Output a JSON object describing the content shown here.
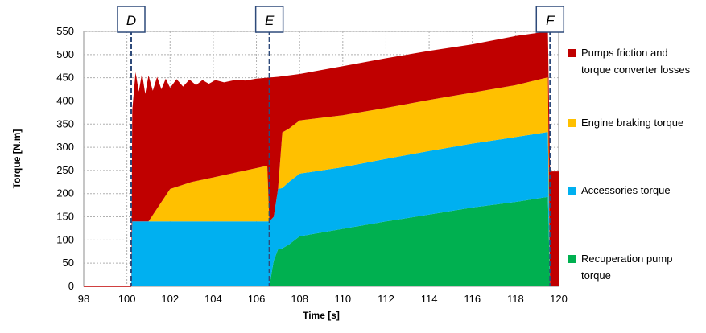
{
  "chart_data": {
    "type": "area",
    "xlabel": "Time [s]",
    "ylabel": "Torque [N.m]",
    "xlim": [
      98,
      120
    ],
    "ylim": [
      0,
      550
    ],
    "xticks": [
      98,
      100,
      102,
      104,
      106,
      108,
      110,
      112,
      114,
      116,
      118,
      120
    ],
    "yticks": [
      0,
      50,
      100,
      150,
      200,
      250,
      300,
      350,
      400,
      450,
      500,
      550
    ],
    "grid": true,
    "stacked": true,
    "legend_position": "right",
    "markers": [
      {
        "label": "D",
        "x": 100.2
      },
      {
        "label": "E",
        "x": 106.6
      },
      {
        "label": "F",
        "x": 119.6
      }
    ],
    "x": [
      98,
      100.2,
      100.25,
      100.5,
      101,
      102,
      103,
      104,
      105,
      106,
      106.5,
      106.6,
      106.8,
      107,
      107.2,
      107.5,
      108,
      110,
      112,
      114,
      116,
      118,
      119.5,
      119.6,
      119.7,
      120
    ],
    "series": [
      {
        "name": "Recuperation pump torque",
        "color": "#00b050",
        "values": [
          0,
          0,
          0,
          0,
          0,
          0,
          0,
          0,
          0,
          0,
          0,
          0,
          55,
          80,
          82,
          90,
          108,
          124,
          140,
          155,
          170,
          182,
          193,
          0,
          0,
          0
        ]
      },
      {
        "name": "Accessories torque",
        "color": "#00b0f0",
        "values": [
          0,
          0,
          140,
          140,
          140,
          140,
          140,
          140,
          140,
          140,
          140,
          140,
          95,
          130,
          130,
          135,
          135,
          133,
          135,
          137,
          138,
          140,
          140,
          0,
          0,
          0
        ]
      },
      {
        "name": "Engine braking torque",
        "color": "#ffc000",
        "values": [
          0,
          0,
          0,
          0,
          0,
          70,
          85,
          95,
          105,
          115,
          120,
          0,
          0,
          0,
          120,
          115,
          115,
          112,
          110,
          110,
          110,
          112,
          118,
          0,
          0,
          0
        ]
      },
      {
        "name": "Pumps friction and torque converter losses",
        "color": "#c00000",
        "values": [
          0,
          0,
          240,
          300,
          260,
          230,
          210,
          200,
          185,
          175,
          170,
          0,
          0,
          0,
          0,
          0,
          0,
          0,
          0,
          0,
          0,
          0,
          0,
          0,
          0,
          0
        ]
      }
    ],
    "envelope_note": "",
    "top_envelope": [
      [
        98,
        0
      ],
      [
        100.2,
        0
      ],
      [
        100.25,
        380
      ],
      [
        100.4,
        462
      ],
      [
        100.55,
        420
      ],
      [
        100.7,
        460
      ],
      [
        100.85,
        415
      ],
      [
        101.0,
        455
      ],
      [
        101.2,
        422
      ],
      [
        101.4,
        452
      ],
      [
        101.6,
        425
      ],
      [
        101.8,
        448
      ],
      [
        102.0,
        428
      ],
      [
        102.3,
        447
      ],
      [
        102.6,
        431
      ],
      [
        102.9,
        446
      ],
      [
        103.2,
        434
      ],
      [
        103.5,
        445
      ],
      [
        103.8,
        437
      ],
      [
        104.1,
        445
      ],
      [
        104.5,
        440
      ],
      [
        105,
        445
      ],
      [
        105.5,
        444
      ],
      [
        106,
        448
      ],
      [
        106.5,
        450
      ],
      [
        107,
        452
      ],
      [
        108,
        458
      ],
      [
        110,
        475
      ],
      [
        112,
        492
      ],
      [
        114,
        508
      ],
      [
        116,
        522
      ],
      [
        118,
        540
      ],
      [
        119.5,
        550
      ],
      [
        119.6,
        248
      ],
      [
        120,
        248
      ],
      [
        120,
        0
      ]
    ]
  },
  "legend": {
    "items": [
      {
        "label": "Pumps friction and torque converter losses",
        "line1": "Pumps friction and",
        "line2": "torque converter losses",
        "color": "#c00000"
      },
      {
        "label": "Engine braking torque",
        "line1": "Engine braking torque",
        "line2": "",
        "color": "#ffc000"
      },
      {
        "label": "Accessories torque",
        "line1": "Accessories torque",
        "line2": "",
        "color": "#00b0f0"
      },
      {
        "label": "Recuperation pump torque",
        "line1": "Recuperation pump",
        "line2": "torque",
        "color": "#00b050"
      }
    ]
  }
}
